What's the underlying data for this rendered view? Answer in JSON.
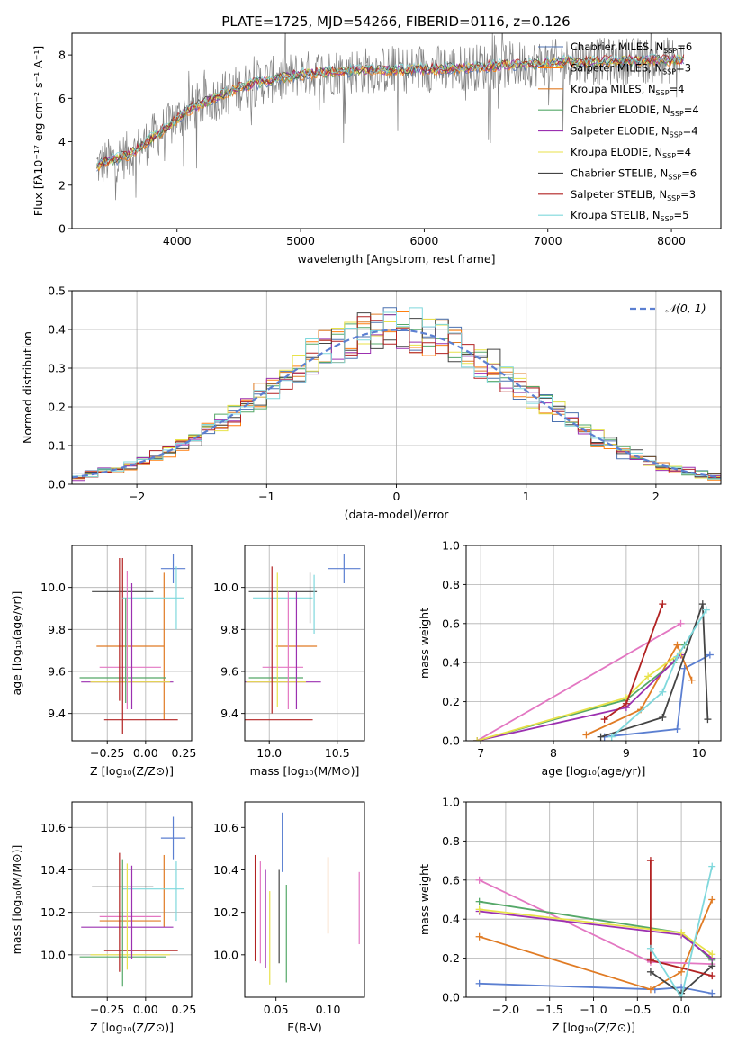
{
  "figure": {
    "title": "PLATE=1725, MJD=54266, FIBERID=0116, z=0.126"
  },
  "legend_models": [
    {
      "label": "Chabrier MILES, N",
      "sub": "SSP",
      "tail": "=6",
      "color": "#4c72b0"
    },
    {
      "label": "Salpeter MILES, N",
      "sub": "SSP",
      "tail": "=3",
      "color": "#ff7f0e"
    },
    {
      "label": "Kroupa MILES, N",
      "sub": "SSP",
      "tail": "=4",
      "color": "#e07b24"
    },
    {
      "label": "Chabrier ELODIE, N",
      "sub": "SSP",
      "tail": "=4",
      "color": "#55a868"
    },
    {
      "label": "Salpeter ELODIE, N",
      "sub": "SSP",
      "tail": "=4",
      "color": "#9b30b0"
    },
    {
      "label": "Kroupa ELODIE, N",
      "sub": "SSP",
      "tail": "=4",
      "color": "#e8e24a"
    },
    {
      "label": "Chabrier STELIB, N",
      "sub": "SSP",
      "tail": "=6",
      "color": "#444444"
    },
    {
      "label": "Salpeter STELIB, N",
      "sub": "SSP",
      "tail": "=3",
      "color": "#b22222"
    },
    {
      "label": "Kroupa STELIB, N",
      "sub": "SSP",
      "tail": "=5",
      "color": "#7fd8dc"
    }
  ],
  "chart_data": [
    {
      "id": "spectrum",
      "type": "line",
      "xlabel": "wavelength [Angstrom, rest frame]",
      "ylabel": "Flux [fλ10⁻¹⁷ erg cm⁻² s⁻¹ A⁻¹]",
      "xlim": [
        3150,
        8400
      ],
      "ylim": [
        0,
        9
      ],
      "xticks": [
        4000,
        5000,
        6000,
        7000,
        8000
      ],
      "yticks": [
        0,
        2,
        4,
        6,
        8
      ],
      "data_color": "#808080",
      "continuum": {
        "x": [
          3350,
          3500,
          3650,
          3800,
          3950,
          4100,
          4300,
          4500,
          4800,
          5000,
          5200,
          5500,
          5800,
          6000,
          6300,
          6600,
          6900,
          7200,
          7500,
          7800,
          8100
        ],
        "y": [
          2.9,
          3.2,
          3.5,
          4.2,
          4.8,
          5.5,
          6.0,
          6.5,
          6.9,
          7.1,
          7.2,
          7.3,
          7.3,
          7.35,
          7.4,
          7.5,
          7.6,
          7.7,
          7.7,
          7.75,
          7.75
        ]
      },
      "grid": false
    },
    {
      "id": "residuals",
      "type": "line",
      "xlabel": "(data-model)/error",
      "ylabel": "Normed distribution",
      "xlim": [
        -2.5,
        2.5
      ],
      "ylim": [
        0,
        0.5
      ],
      "xticks": [
        -2,
        -1,
        0,
        1,
        2
      ],
      "xtick_labels": [
        "−2",
        "−1",
        "0",
        "1",
        "2"
      ],
      "yticks": [
        0.0,
        0.1,
        0.2,
        0.3,
        0.4,
        0.5
      ],
      "ytick_labels": [
        "0.0",
        "0.1",
        "0.2",
        "0.3",
        "0.4",
        "0.5"
      ],
      "reference_curve": {
        "name": "𝒩(0, 1)",
        "mean": 0,
        "sigma": 1,
        "color": "#5b7fd1",
        "style": "dashed"
      },
      "legend": "top-right",
      "grid": true
    },
    {
      "id": "age-vs-Z",
      "type": "scatter",
      "xlabel": "Z [log₁₀(Z/Z⊙)]",
      "ylabel": "age [log₁₀(age/yr)]",
      "xlim": [
        -0.48,
        0.3
      ],
      "ylim": [
        9.27,
        10.2
      ],
      "xticks": [
        -0.25,
        0.0,
        0.25
      ],
      "xtick_labels": [
        "−0.25",
        "0.00",
        "0.25"
      ],
      "yticks": [
        9.4,
        9.6,
        9.8,
        10.0
      ],
      "ytick_labels": [
        "9.4",
        "9.6",
        "9.8",
        "10.0"
      ],
      "points": [
        {
          "x": 0.18,
          "xerr": 0.08,
          "y": 10.09,
          "yerr": 0.07,
          "color": "#5b7fd1"
        },
        {
          "x": 0.12,
          "xerr": 0.0,
          "y": 9.72,
          "yerr": 0.35,
          "color": "#e07b24"
        },
        {
          "x": -0.1,
          "xerr": 0.22,
          "y": 9.72,
          "yerr": 0.0,
          "color": "#e07b24"
        },
        {
          "x": -0.1,
          "xerr": 0.2,
          "y": 9.62,
          "yerr": 0.0,
          "color": "#e377c2"
        },
        {
          "x": -0.15,
          "xerr": 0.28,
          "y": 9.57,
          "yerr": 0.0,
          "color": "#55a868"
        },
        {
          "x": -0.12,
          "xerr": 0.3,
          "y": 9.55,
          "yerr": 0.0,
          "color": "#9b30b0"
        },
        {
          "x": -0.1,
          "xerr": 0.26,
          "y": 9.55,
          "yerr": 0.0,
          "color": "#e8e24a"
        },
        {
          "x": -0.15,
          "xerr": 0.2,
          "y": 9.98,
          "yerr": 0.0,
          "color": "#444444"
        },
        {
          "x": -0.15,
          "xerr": 0.0,
          "y": 9.72,
          "yerr": 0.42,
          "color": "#b22222"
        },
        {
          "x": -0.03,
          "xerr": 0.24,
          "y": 9.37,
          "yerr": 0.0,
          "color": "#b22222"
        },
        {
          "x": 0.05,
          "xerr": 0.2,
          "y": 9.95,
          "yerr": 0.0,
          "color": "#7fd8dc"
        },
        {
          "x": 0.2,
          "xerr": 0.0,
          "y": 9.95,
          "yerr": 0.15,
          "color": "#7fd8dc"
        },
        {
          "x": -0.17,
          "xerr": 0.0,
          "y": 9.8,
          "yerr": 0.34,
          "color": "#b22222"
        },
        {
          "x": -0.12,
          "xerr": 0.0,
          "y": 9.75,
          "yerr": 0.33,
          "color": "#e377c2"
        },
        {
          "x": -0.09,
          "xerr": 0.0,
          "y": 9.72,
          "yerr": 0.3,
          "color": "#9b30b0"
        },
        {
          "x": -0.13,
          "xerr": 0.0,
          "y": 9.7,
          "yerr": 0.25,
          "color": "#55a868"
        }
      ],
      "grid": true
    },
    {
      "id": "age-vs-mass",
      "type": "scatter",
      "xlabel": "mass [log₁₀(M/M⊙)]",
      "xlim": [
        9.82,
        10.7
      ],
      "ylim": [
        9.27,
        10.2
      ],
      "xticks": [
        10.0,
        10.5
      ],
      "xtick_labels": [
        "10.0",
        "10.5"
      ],
      "yticks": [
        9.4,
        9.6,
        9.8,
        10.0
      ],
      "ytick_labels": [
        "9.4",
        "9.6",
        "9.8",
        "10.0"
      ],
      "points": [
        {
          "x": 10.55,
          "xerr": 0.12,
          "y": 10.09,
          "yerr": 0.07,
          "color": "#5b7fd1"
        },
        {
          "x": 10.2,
          "xerr": 0.15,
          "y": 9.72,
          "yerr": 0.0,
          "color": "#e07b24"
        },
        {
          "x": 10.1,
          "xerr": 0.15,
          "y": 9.62,
          "yerr": 0.0,
          "color": "#e377c2"
        },
        {
          "x": 10.05,
          "xerr": 0.2,
          "y": 9.57,
          "yerr": 0.0,
          "color": "#55a868"
        },
        {
          "x": 10.1,
          "xerr": 0.28,
          "y": 9.55,
          "yerr": 0.0,
          "color": "#9b30b0"
        },
        {
          "x": 10.05,
          "xerr": 0.22,
          "y": 9.55,
          "yerr": 0.0,
          "color": "#e8e24a"
        },
        {
          "x": 10.1,
          "xerr": 0.25,
          "y": 9.98,
          "yerr": 0.0,
          "color": "#444444"
        },
        {
          "x": 10.05,
          "xerr": 0.27,
          "y": 9.37,
          "yerr": 0.0,
          "color": "#b22222"
        },
        {
          "x": 10.1,
          "xerr": 0.22,
          "y": 9.95,
          "yerr": 0.0,
          "color": "#7fd8dc"
        },
        {
          "x": 10.02,
          "xerr": 0.0,
          "y": 9.75,
          "yerr": 0.35,
          "color": "#b22222"
        },
        {
          "x": 10.06,
          "xerr": 0.0,
          "y": 9.75,
          "yerr": 0.32,
          "color": "#e8e24a"
        },
        {
          "x": 10.14,
          "xerr": 0.0,
          "y": 9.7,
          "yerr": 0.28,
          "color": "#e377c2"
        },
        {
          "x": 10.2,
          "xerr": 0.0,
          "y": 9.7,
          "yerr": 0.28,
          "color": "#9b30b0"
        },
        {
          "x": 10.3,
          "xerr": 0.0,
          "y": 9.95,
          "yerr": 0.12,
          "color": "#444444"
        },
        {
          "x": 10.33,
          "xerr": 0.0,
          "y": 9.92,
          "yerr": 0.14,
          "color": "#7fd8dc"
        }
      ],
      "grid": true
    },
    {
      "id": "massweight-vs-age",
      "type": "line",
      "xlabel": "age [log₁₀(age/yr)]",
      "ylabel": "mass weight",
      "xlim": [
        6.8,
        10.3
      ],
      "ylim": [
        0,
        1.0
      ],
      "xticks": [
        7,
        8,
        9,
        10
      ],
      "yticks": [
        0.0,
        0.2,
        0.4,
        0.6,
        0.8,
        1.0
      ],
      "ytick_labels": [
        "0.0",
        "0.2",
        "0.4",
        "0.6",
        "0.8",
        "1.0"
      ],
      "series": [
        {
          "x": [
            8.7,
            9.7,
            9.8,
            10.15
          ],
          "y": [
            0.02,
            0.06,
            0.37,
            0.44
          ],
          "color": "#5b7fd1"
        },
        {
          "x": [
            8.45,
            9.2,
            9.7,
            9.9
          ],
          "y": [
            0.03,
            0.16,
            0.49,
            0.31
          ],
          "color": "#e07b24"
        },
        {
          "x": [
            6.95,
            9.75
          ],
          "y": [
            0.0,
            0.6
          ],
          "color": "#e377c2"
        },
        {
          "x": [
            6.95,
            9.0,
            9.65,
            9.8
          ],
          "y": [
            0.0,
            0.21,
            0.4,
            0.49
          ],
          "color": "#55a868"
        },
        {
          "x": [
            6.95,
            9.0,
            9.75
          ],
          "y": [
            0.0,
            0.17,
            0.44
          ],
          "color": "#9b30b0"
        },
        {
          "x": [
            6.95,
            9.0,
            9.3,
            9.75
          ],
          "y": [
            0.0,
            0.22,
            0.33,
            0.45
          ],
          "color": "#e8e24a"
        },
        {
          "x": [
            8.65,
            9.5,
            10.05,
            10.12
          ],
          "y": [
            0.02,
            0.12,
            0.7,
            0.11
          ],
          "color": "#444444"
        },
        {
          "x": [
            8.7,
            9.0,
            9.5
          ],
          "y": [
            0.11,
            0.19,
            0.7
          ],
          "color": "#b22222"
        },
        {
          "x": [
            8.8,
            9.5,
            9.7,
            10.1
          ],
          "y": [
            0.02,
            0.25,
            0.43,
            0.67
          ],
          "color": "#7fd8dc"
        }
      ],
      "grid": true
    },
    {
      "id": "mass-vs-Z",
      "type": "scatter",
      "xlabel": "Z [log₁₀(Z/Z⊙)]",
      "ylabel": "mass [log₁₀(M/M⊙)]",
      "xlim": [
        -0.48,
        0.3
      ],
      "ylim": [
        9.8,
        10.72
      ],
      "xticks": [
        -0.25,
        0.0,
        0.25
      ],
      "xtick_labels": [
        "−0.25",
        "0.00",
        "0.25"
      ],
      "yticks": [
        10.0,
        10.2,
        10.4,
        10.6
      ],
      "ytick_labels": [
        "10.0",
        "10.2",
        "10.4",
        "10.6"
      ],
      "points": [
        {
          "x": 0.18,
          "xerr": 0.08,
          "y": 10.55,
          "yerr": 0.1,
          "color": "#5b7fd1"
        },
        {
          "x": 0.12,
          "xerr": 0.0,
          "y": 10.3,
          "yerr": 0.17,
          "color": "#e07b24"
        },
        {
          "x": -0.1,
          "xerr": 0.2,
          "y": 10.16,
          "yerr": 0.0,
          "color": "#e07b24"
        },
        {
          "x": -0.1,
          "xerr": 0.2,
          "y": 10.18,
          "yerr": 0.0,
          "color": "#e377c2"
        },
        {
          "x": -0.15,
          "xerr": 0.28,
          "y": 9.99,
          "yerr": 0.0,
          "color": "#55a868"
        },
        {
          "x": -0.12,
          "xerr": 0.3,
          "y": 10.13,
          "yerr": 0.0,
          "color": "#9b30b0"
        },
        {
          "x": -0.1,
          "xerr": 0.26,
          "y": 10.0,
          "yerr": 0.0,
          "color": "#e8e24a"
        },
        {
          "x": -0.15,
          "xerr": 0.2,
          "y": 10.32,
          "yerr": 0.0,
          "color": "#444444"
        },
        {
          "x": -0.03,
          "xerr": 0.24,
          "y": 10.02,
          "yerr": 0.0,
          "color": "#b22222"
        },
        {
          "x": 0.05,
          "xerr": 0.2,
          "y": 10.31,
          "yerr": 0.0,
          "color": "#7fd8dc"
        },
        {
          "x": -0.17,
          "xerr": 0.0,
          "y": 10.2,
          "yerr": 0.28,
          "color": "#b22222"
        },
        {
          "x": -0.15,
          "xerr": 0.0,
          "y": 10.15,
          "yerr": 0.3,
          "color": "#55a868"
        },
        {
          "x": -0.12,
          "xerr": 0.0,
          "y": 10.18,
          "yerr": 0.25,
          "color": "#e8e24a"
        },
        {
          "x": -0.09,
          "xerr": 0.0,
          "y": 10.2,
          "yerr": 0.22,
          "color": "#9b30b0"
        },
        {
          "x": 0.2,
          "xerr": 0.0,
          "y": 10.3,
          "yerr": 0.14,
          "color": "#7fd8dc"
        }
      ],
      "grid": true
    },
    {
      "id": "mass-vs-EBV",
      "type": "scatter",
      "xlabel": "E(B-V)",
      "xlim": [
        0.02,
        0.135
      ],
      "ylim": [
        9.8,
        10.72
      ],
      "xticks": [
        0.05,
        0.1
      ],
      "xtick_labels": [
        "0.05",
        "0.10"
      ],
      "yticks": [
        10.0,
        10.2,
        10.4,
        10.6
      ],
      "ytick_labels": [
        "10.0",
        "10.2",
        "10.4",
        "10.6"
      ],
      "points": [
        {
          "x": 0.03,
          "xerr": 0.0,
          "y": 10.22,
          "yerr": 0.25,
          "color": "#b22222"
        },
        {
          "x": 0.035,
          "xerr": 0.0,
          "y": 10.2,
          "yerr": 0.24,
          "color": "#e377c2"
        },
        {
          "x": 0.04,
          "xerr": 0.0,
          "y": 10.17,
          "yerr": 0.23,
          "color": "#9b30b0"
        },
        {
          "x": 0.044,
          "xerr": 0.0,
          "y": 10.08,
          "yerr": 0.22,
          "color": "#e8e24a"
        },
        {
          "x": 0.053,
          "xerr": 0.0,
          "y": 10.18,
          "yerr": 0.22,
          "color": "#444444"
        },
        {
          "x": 0.056,
          "xerr": 0.0,
          "y": 10.53,
          "yerr": 0.14,
          "color": "#5b7fd1"
        },
        {
          "x": 0.06,
          "xerr": 0.0,
          "y": 10.1,
          "yerr": 0.23,
          "color": "#55a868"
        },
        {
          "x": 0.1,
          "xerr": 0.0,
          "y": 10.28,
          "yerr": 0.18,
          "color": "#e07b24"
        },
        {
          "x": 0.13,
          "xerr": 0.0,
          "y": 10.22,
          "yerr": 0.17,
          "color": "#e377c2"
        }
      ],
      "grid": false
    },
    {
      "id": "massweight-vs-Z",
      "type": "line",
      "xlabel": "Z [log₁₀(Z/Z⊙)]",
      "ylabel": "mass weight",
      "xlim": [
        -2.45,
        0.45
      ],
      "ylim": [
        0,
        1.0
      ],
      "xticks": [
        -2.0,
        -1.5,
        -1.0,
        -0.5,
        0.0
      ],
      "xtick_labels": [
        "−2.0",
        "−1.5",
        "−1.0",
        "−0.5",
        "0.0"
      ],
      "yticks": [
        0.0,
        0.2,
        0.4,
        0.6,
        0.8,
        1.0
      ],
      "ytick_labels": [
        "0.0",
        "0.2",
        "0.4",
        "0.6",
        "0.8",
        "1.0"
      ],
      "series": [
        {
          "x": [
            -2.3,
            -0.3,
            0.0,
            0.35
          ],
          "y": [
            0.07,
            0.04,
            0.05,
            0.02
          ],
          "color": "#5b7fd1"
        },
        {
          "x": [
            -2.3,
            -0.35,
            0.0,
            0.35
          ],
          "y": [
            0.31,
            0.04,
            0.13,
            0.5
          ],
          "color": "#e07b24"
        },
        {
          "x": [
            -2.3,
            -0.35,
            0.35
          ],
          "y": [
            0.6,
            0.18,
            0.17
          ],
          "color": "#e377c2"
        },
        {
          "x": [
            -2.3,
            0.0,
            0.35
          ],
          "y": [
            0.49,
            0.33,
            0.19
          ],
          "color": "#55a868"
        },
        {
          "x": [
            -2.3,
            0.0,
            0.35
          ],
          "y": [
            0.44,
            0.32,
            0.2
          ],
          "color": "#9b30b0"
        },
        {
          "x": [
            -2.3,
            0.0,
            0.35
          ],
          "y": [
            0.45,
            0.33,
            0.22
          ],
          "color": "#e8e24a"
        },
        {
          "x": [
            -0.35,
            0.0,
            0.35
          ],
          "y": [
            0.13,
            0.02,
            0.16
          ],
          "color": "#444444"
        },
        {
          "x": [
            -0.35,
            -0.35,
            0.35
          ],
          "y": [
            0.7,
            0.19,
            0.11
          ],
          "color": "#b22222"
        },
        {
          "x": [
            -0.35,
            0.0,
            0.35
          ],
          "y": [
            0.25,
            0.0,
            0.67
          ],
          "color": "#7fd8dc"
        }
      ],
      "grid": true
    }
  ]
}
